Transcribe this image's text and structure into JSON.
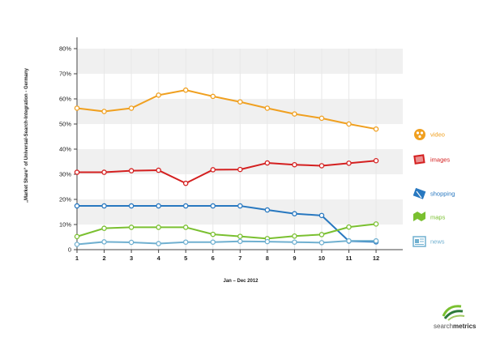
{
  "chart_data": {
    "type": "line",
    "title": "",
    "xlabel": "Jan – Dec 2012",
    "ylabel": "„Market Share“ of Universal-Search-Integration - Germany",
    "x": [
      1,
      2,
      3,
      4,
      5,
      6,
      7,
      8,
      9,
      10,
      11,
      12
    ],
    "x_tick_labels": [
      "1",
      "2",
      "3",
      "4",
      "5",
      "6",
      "7",
      "8",
      "9",
      "10",
      "11",
      "12"
    ],
    "ylim": [
      0,
      80
    ],
    "y_ticks": [
      0,
      10,
      20,
      30,
      40,
      50,
      60,
      70,
      80
    ],
    "y_tick_labels": [
      "0",
      "10%",
      "20%",
      "30%",
      "40%",
      "50%",
      "60%",
      "70%",
      "80%"
    ],
    "grid": "alternating horizontal bands",
    "legend_position": "right",
    "series": [
      {
        "name": "video",
        "color": "#f0a020",
        "icon": "video-icon",
        "values": [
          56.3,
          55.0,
          56.3,
          61.5,
          63.5,
          61.0,
          58.8,
          56.3,
          54.0,
          52.3,
          50.0,
          48.0
        ]
      },
      {
        "name": "images",
        "color": "#d42020",
        "icon": "images-icon",
        "values": [
          30.8,
          30.8,
          31.4,
          31.6,
          26.4,
          31.8,
          31.9,
          34.5,
          33.8,
          33.4,
          34.4,
          35.4
        ]
      },
      {
        "name": "shopping",
        "color": "#2878c0",
        "icon": "shopping-icon",
        "values": [
          17.4,
          17.4,
          17.4,
          17.4,
          17.4,
          17.4,
          17.4,
          15.8,
          14.3,
          13.6,
          3.4,
          3.1
        ]
      },
      {
        "name": "maps",
        "color": "#7ac030",
        "icon": "maps-icon",
        "values": [
          5.2,
          8.5,
          8.9,
          8.9,
          8.9,
          6.1,
          5.3,
          4.4,
          5.4,
          6.0,
          9.0,
          10.2
        ]
      },
      {
        "name": "news",
        "color": "#70b0d0",
        "icon": "news-icon",
        "values": [
          2.1,
          3.1,
          2.9,
          2.4,
          3.0,
          3.0,
          3.3,
          3.2,
          3.0,
          2.8,
          3.5,
          3.5
        ]
      }
    ]
  },
  "brand": {
    "prefix": "search",
    "suffix": "metrics"
  }
}
